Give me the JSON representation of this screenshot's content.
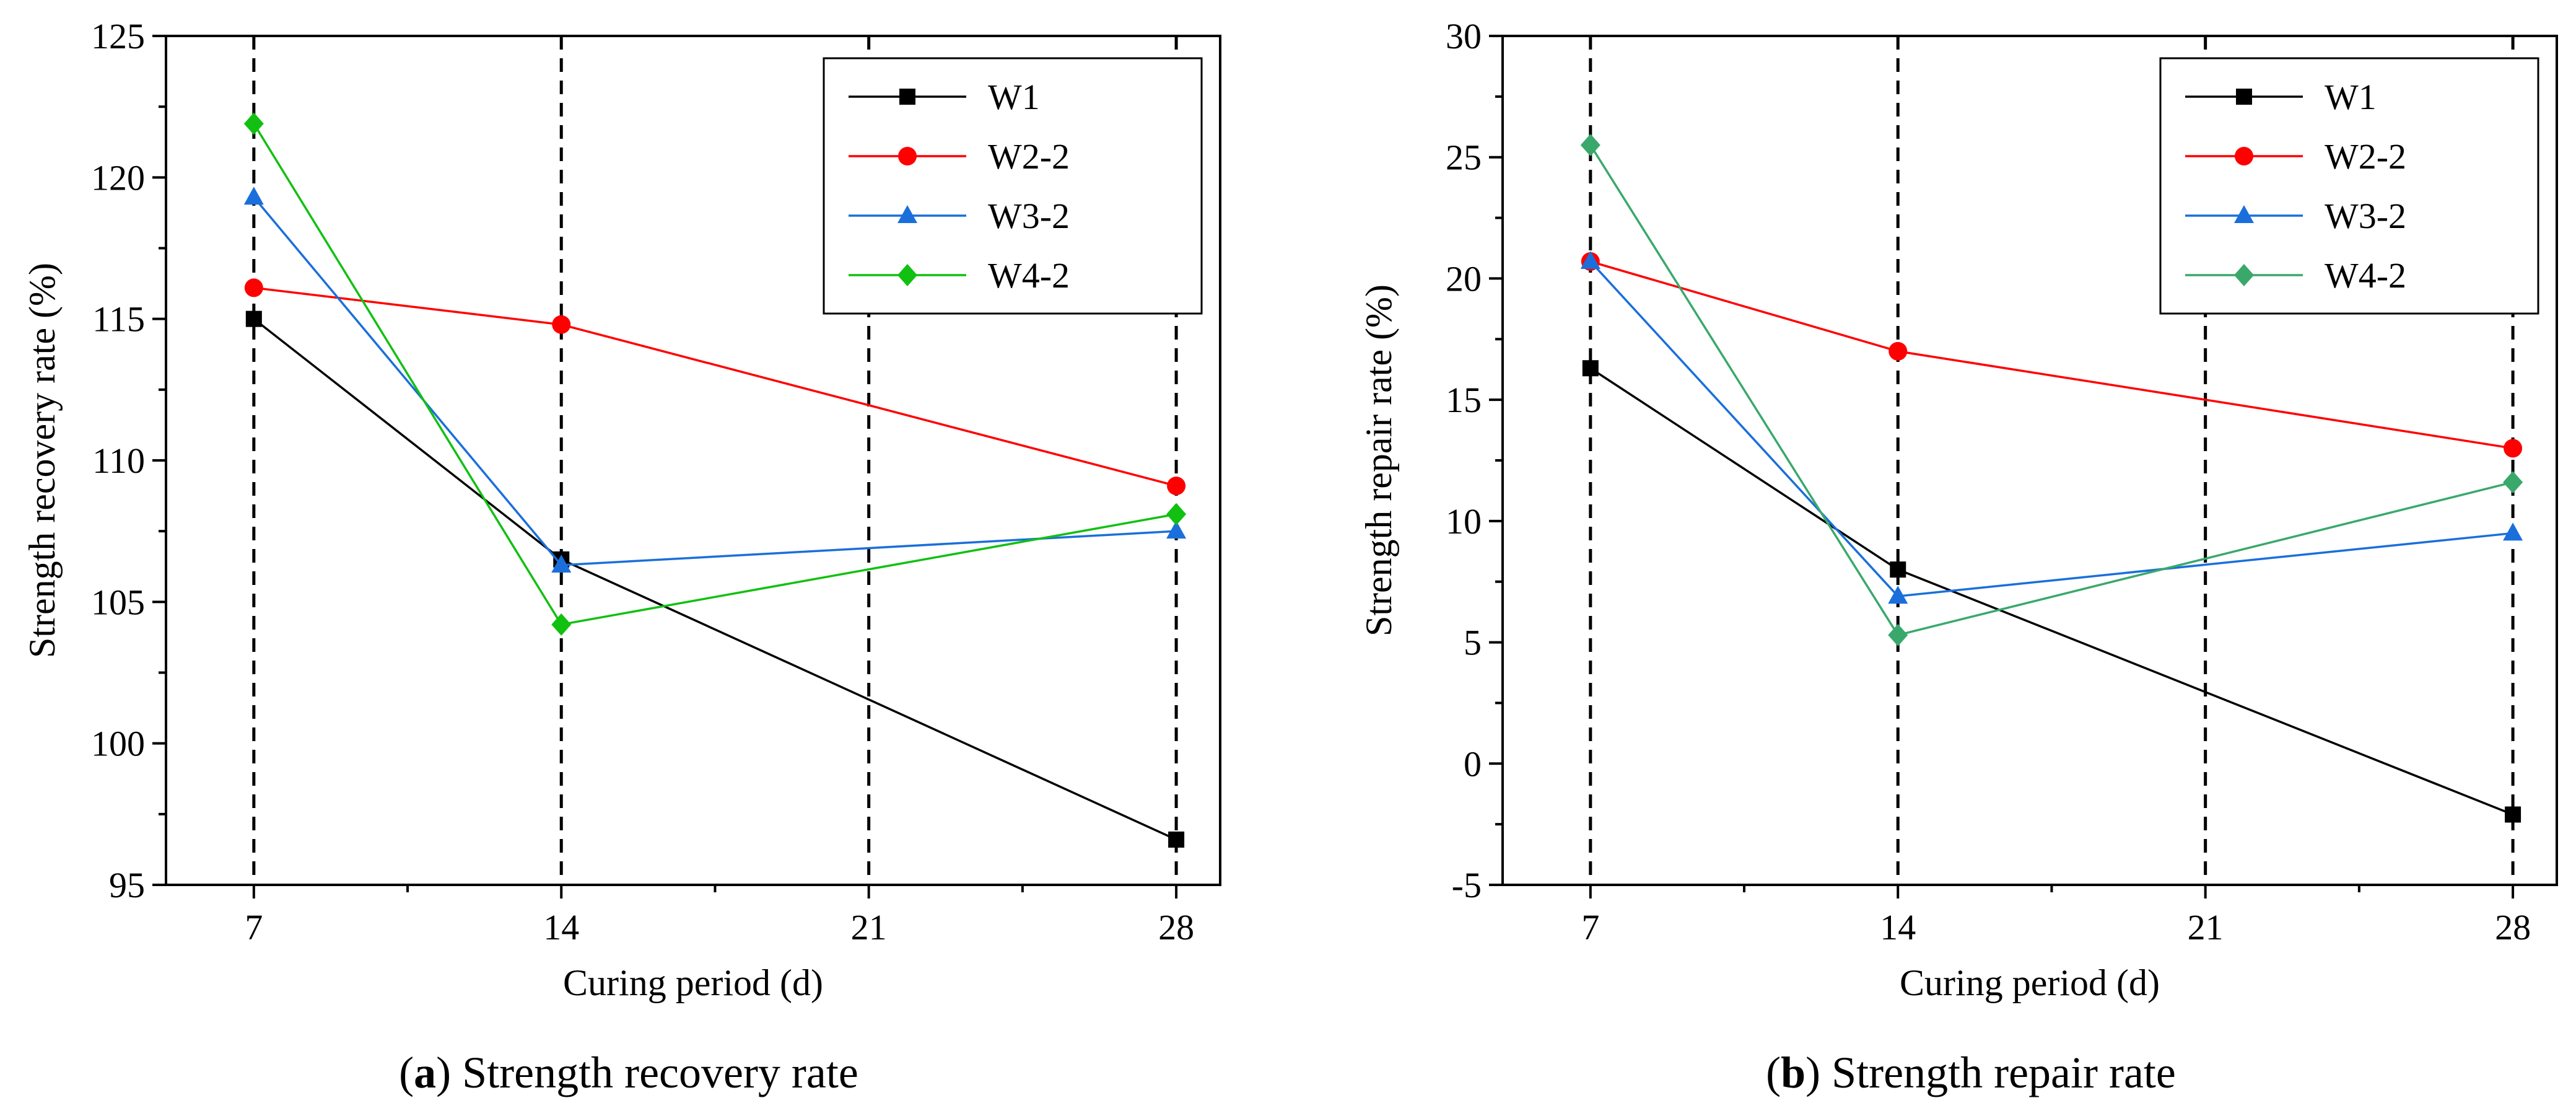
{
  "chart_data": [
    {
      "type": "line",
      "panel": "a",
      "title": "Strength recovery rate",
      "caption_letter": "a",
      "xlabel": "Curing period (d)",
      "ylabel": "Strength recovery rate (%)",
      "x": [
        7,
        14,
        28
      ],
      "xticks": [
        7,
        14,
        21,
        28
      ],
      "xlim": [
        5,
        29
      ],
      "ylim": [
        95,
        125
      ],
      "yticks": [
        95,
        100,
        105,
        110,
        115,
        120,
        125
      ],
      "dashed_vlines": [
        7,
        14,
        21,
        28
      ],
      "legend_position": "top-right",
      "series": [
        {
          "name": "W1",
          "color": "#000000",
          "marker": "square",
          "values": [
            115.0,
            106.5,
            96.6
          ]
        },
        {
          "name": "W2-2",
          "color": "#ff0000",
          "marker": "circle",
          "values": [
            116.1,
            114.8,
            109.1
          ]
        },
        {
          "name": "W3-2",
          "color": "#1a6fdb",
          "marker": "triangle",
          "values": [
            119.3,
            106.3,
            107.5
          ]
        },
        {
          "name": "W4-2",
          "color": "#11c011",
          "marker": "diamond",
          "values": [
            121.9,
            104.2,
            108.1
          ]
        }
      ]
    },
    {
      "type": "line",
      "panel": "b",
      "title": "Strength repair rate",
      "caption_letter": "b",
      "xlabel": "Curing period (d)",
      "ylabel": "Strength repair rate (%)",
      "x": [
        7,
        14,
        28
      ],
      "xticks": [
        7,
        14,
        21,
        28
      ],
      "xlim": [
        5,
        29
      ],
      "ylim": [
        -5,
        30
      ],
      "yticks": [
        -5,
        0,
        5,
        10,
        15,
        20,
        25,
        30
      ],
      "dashed_vlines": [
        7,
        14,
        21,
        28
      ],
      "legend_position": "top-right",
      "series": [
        {
          "name": "W1",
          "color": "#000000",
          "marker": "square",
          "values": [
            16.3,
            8.0,
            -2.1
          ]
        },
        {
          "name": "W2-2",
          "color": "#ff0000",
          "marker": "circle",
          "values": [
            20.7,
            17.0,
            13.0
          ]
        },
        {
          "name": "W3-2",
          "color": "#1a6fdb",
          "marker": "triangle",
          "values": [
            20.7,
            6.9,
            9.5
          ]
        },
        {
          "name": "W4-2",
          "color": "#3aa86b",
          "marker": "diamond",
          "values": [
            25.5,
            5.3,
            11.6
          ]
        }
      ]
    }
  ]
}
